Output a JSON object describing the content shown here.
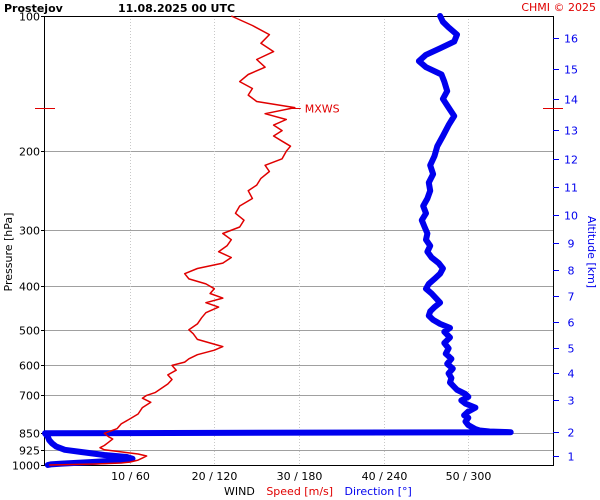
{
  "header": {
    "station": "Prostejov",
    "datetime": "11.08.2025 00 UTC",
    "credit": "CHMI © 2025"
  },
  "chart_data": {
    "type": "line",
    "xlabel": {
      "prefix": "WIND",
      "speed": "Speed [m/s]",
      "direction": "Direction [°]"
    },
    "ylabel": "Pressure [hPa]",
    "y2label": "Altitude [km]",
    "pressure_scale": "log",
    "pressure_range": [
      1000,
      100
    ],
    "pressure_ticks": [
      {
        "p": 100,
        "label": "100"
      },
      {
        "p": 200,
        "label": "200"
      },
      {
        "p": 300,
        "label": "300"
      },
      {
        "p": 400,
        "label": "400"
      },
      {
        "p": 500,
        "label": "500"
      },
      {
        "p": 600,
        "label": "600"
      },
      {
        "p": 700,
        "label": "700"
      },
      {
        "p": 850,
        "label": "850"
      },
      {
        "p": 925,
        "label": "925"
      },
      {
        "p": 1000,
        "label": "1000"
      }
    ],
    "speed_range": [
      0,
      60
    ],
    "direction_range": [
      0,
      360
    ],
    "x_ticks": [
      {
        "speed": 10,
        "label": "10 / 60"
      },
      {
        "speed": 20,
        "label": "20 / 120"
      },
      {
        "speed": 30,
        "label": "30 / 180"
      },
      {
        "speed": 40,
        "label": "40 / 240"
      },
      {
        "speed": 50,
        "label": "50 / 300"
      }
    ],
    "altitude_ticks": [
      {
        "p": 953,
        "label": "1"
      },
      {
        "p": 845,
        "label": "2"
      },
      {
        "p": 715,
        "label": "3"
      },
      {
        "p": 625,
        "label": "4"
      },
      {
        "p": 550,
        "label": "5"
      },
      {
        "p": 480,
        "label": "6"
      },
      {
        "p": 420,
        "label": "7"
      },
      {
        "p": 368,
        "label": "8"
      },
      {
        "p": 320,
        "label": "9"
      },
      {
        "p": 277,
        "label": "10"
      },
      {
        "p": 240,
        "label": "11"
      },
      {
        "p": 208,
        "label": "12"
      },
      {
        "p": 179,
        "label": "13"
      },
      {
        "p": 153,
        "label": "14"
      },
      {
        "p": 131,
        "label": "15"
      },
      {
        "p": 112,
        "label": "16"
      }
    ],
    "max_wind": {
      "label": "MXWS",
      "pressure": 160,
      "speed": 29.5
    },
    "speed_series": {
      "name": "Speed [m/s]",
      "color": "#e00000",
      "points": [
        [
          1000,
          0.5
        ],
        [
          995,
          6
        ],
        [
          990,
          9
        ],
        [
          985,
          10
        ],
        [
          975,
          11
        ],
        [
          965,
          11.5
        ],
        [
          955,
          12
        ],
        [
          945,
          11
        ],
        [
          935,
          9
        ],
        [
          925,
          7
        ],
        [
          915,
          6.5
        ],
        [
          905,
          7
        ],
        [
          890,
          7.5
        ],
        [
          875,
          8
        ],
        [
          865,
          7.5
        ],
        [
          850,
          7
        ],
        [
          830,
          8.5
        ],
        [
          810,
          9
        ],
        [
          790,
          10
        ],
        [
          770,
          11
        ],
        [
          745,
          11.5
        ],
        [
          725,
          12.5
        ],
        [
          710,
          11.5
        ],
        [
          700,
          12
        ],
        [
          690,
          13
        ],
        [
          680,
          13.5
        ],
        [
          660,
          14.5
        ],
        [
          645,
          15
        ],
        [
          630,
          14.5
        ],
        [
          615,
          15.5
        ],
        [
          600,
          15
        ],
        [
          590,
          16.5
        ],
        [
          580,
          17
        ],
        [
          568,
          18
        ],
        [
          555,
          20
        ],
        [
          545,
          21
        ],
        [
          535,
          19.5
        ],
        [
          525,
          18
        ],
        [
          510,
          17.5
        ],
        [
          500,
          17
        ],
        [
          485,
          18
        ],
        [
          470,
          18.5
        ],
        [
          458,
          19
        ],
        [
          445,
          20.5
        ],
        [
          435,
          19
        ],
        [
          425,
          21
        ],
        [
          415,
          19.5
        ],
        [
          405,
          20
        ],
        [
          395,
          19
        ],
        [
          385,
          17
        ],
        [
          375,
          16.5
        ],
        [
          365,
          18
        ],
        [
          355,
          21
        ],
        [
          345,
          22
        ],
        [
          335,
          20.5
        ],
        [
          325,
          21.5
        ],
        [
          315,
          22
        ],
        [
          305,
          21
        ],
        [
          295,
          23
        ],
        [
          285,
          23.5
        ],
        [
          275,
          22.5
        ],
        [
          265,
          23
        ],
        [
          255,
          24.5
        ],
        [
          245,
          24
        ],
        [
          238,
          25
        ],
        [
          230,
          25.5
        ],
        [
          222,
          26.5
        ],
        [
          215,
          26
        ],
        [
          208,
          28
        ],
        [
          200,
          28.5
        ],
        [
          195,
          29
        ],
        [
          190,
          28
        ],
        [
          185,
          27
        ],
        [
          180,
          28
        ],
        [
          175,
          27
        ],
        [
          170,
          28.5
        ],
        [
          165,
          26
        ],
        [
          160,
          29.5
        ],
        [
          155,
          25
        ],
        [
          150,
          24
        ],
        [
          145,
          24.5
        ],
        [
          140,
          23
        ],
        [
          135,
          24
        ],
        [
          130,
          26
        ],
        [
          125,
          25
        ],
        [
          120,
          27
        ],
        [
          115,
          25.5
        ],
        [
          110,
          26.5
        ],
        [
          105,
          24.5
        ],
        [
          100,
          22
        ]
      ]
    },
    "direction_series": {
      "name": "Direction [°]",
      "color": "#0000ee",
      "points": [
        [
          1000,
          2
        ],
        [
          997,
          4
        ],
        [
          993,
          12
        ],
        [
          985,
          32
        ],
        [
          975,
          55
        ],
        [
          968,
          62
        ],
        [
          960,
          58
        ],
        [
          950,
          42
        ],
        [
          935,
          25
        ],
        [
          925,
          14
        ],
        [
          910,
          8
        ],
        [
          895,
          5
        ],
        [
          880,
          3
        ],
        [
          865,
          2
        ],
        [
          850,
          0
        ],
        [
          845,
          330
        ],
        [
          842,
          315
        ],
        [
          838,
          308
        ],
        [
          832,
          305
        ],
        [
          815,
          300
        ],
        [
          800,
          298
        ],
        [
          785,
          300
        ],
        [
          775,
          297
        ],
        [
          760,
          300
        ],
        [
          745,
          305
        ],
        [
          730,
          298
        ],
        [
          718,
          295
        ],
        [
          705,
          300
        ],
        [
          695,
          298
        ],
        [
          680,
          292
        ],
        [
          670,
          290
        ],
        [
          655,
          287
        ],
        [
          640,
          288
        ],
        [
          625,
          286
        ],
        [
          610,
          289
        ],
        [
          595,
          285
        ],
        [
          580,
          288
        ],
        [
          565,
          284
        ],
        [
          550,
          286
        ],
        [
          535,
          283
        ],
        [
          520,
          287
        ],
        [
          505,
          283
        ],
        [
          495,
          287
        ],
        [
          485,
          280
        ],
        [
          475,
          275
        ],
        [
          465,
          272
        ],
        [
          455,
          273
        ],
        [
          445,
          276
        ],
        [
          435,
          280
        ],
        [
          425,
          277
        ],
        [
          415,
          274
        ],
        [
          405,
          270
        ],
        [
          395,
          272
        ],
        [
          385,
          276
        ],
        [
          375,
          280
        ],
        [
          365,
          282
        ],
        [
          355,
          279
        ],
        [
          345,
          274
        ],
        [
          335,
          271
        ],
        [
          325,
          273
        ],
        [
          315,
          270
        ],
        [
          305,
          271
        ],
        [
          295,
          269
        ],
        [
          285,
          267
        ],
        [
          275,
          270
        ],
        [
          265,
          268
        ],
        [
          255,
          271
        ],
        [
          245,
          273
        ],
        [
          235,
          272
        ],
        [
          225,
          275
        ],
        [
          215,
          273
        ],
        [
          205,
          276
        ],
        [
          195,
          278
        ],
        [
          185,
          282
        ],
        [
          175,
          286
        ],
        [
          167,
          290
        ],
        [
          160,
          286
        ],
        [
          153,
          282
        ],
        [
          147,
          285
        ],
        [
          140,
          283
        ],
        [
          135,
          281
        ],
        [
          130,
          270
        ],
        [
          126,
          265
        ],
        [
          122,
          270
        ],
        [
          118,
          280
        ],
        [
          114,
          290
        ],
        [
          110,
          292
        ],
        [
          106,
          286
        ],
        [
          103,
          282
        ],
        [
          100,
          280
        ]
      ]
    }
  }
}
